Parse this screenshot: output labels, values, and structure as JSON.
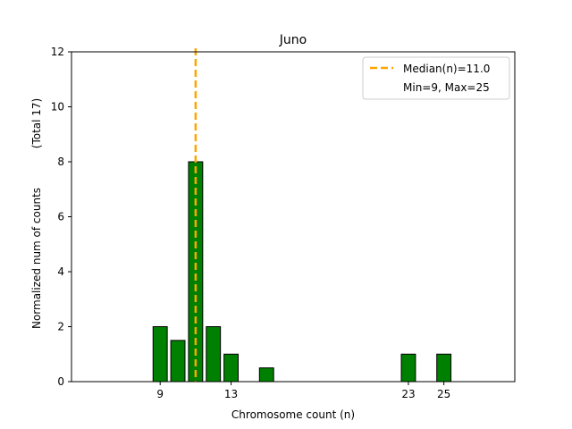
{
  "chart_data": {
    "type": "bar",
    "title": "Juno",
    "xlabel": "Chromosome count (n)",
    "ylabel": "Normalized num of counts",
    "ylabel_total": "(Total 17)",
    "xlim": [
      4,
      29
    ],
    "ylim": [
      0,
      12
    ],
    "x_ticks": [
      9,
      13,
      23,
      25
    ],
    "y_ticks": [
      0,
      2,
      4,
      6,
      8,
      10,
      12
    ],
    "bar_width": 0.8,
    "bar_color": "#008000",
    "bar_edge_color": "#000000",
    "bars": [
      {
        "x": 9,
        "value": 2
      },
      {
        "x": 10,
        "value": 1.5
      },
      {
        "x": 11,
        "value": 8
      },
      {
        "x": 12,
        "value": 2
      },
      {
        "x": 13,
        "value": 1
      },
      {
        "x": 15,
        "value": 0.5
      },
      {
        "x": 23,
        "value": 1
      },
      {
        "x": 25,
        "value": 1
      }
    ],
    "median": {
      "value": 11.0,
      "color": "#FFA500",
      "style": "dashed"
    },
    "legend": {
      "placement": "top-right",
      "entries": [
        "Median(n)=11.0",
        "Min=9, Max=25"
      ]
    },
    "grid": false
  }
}
